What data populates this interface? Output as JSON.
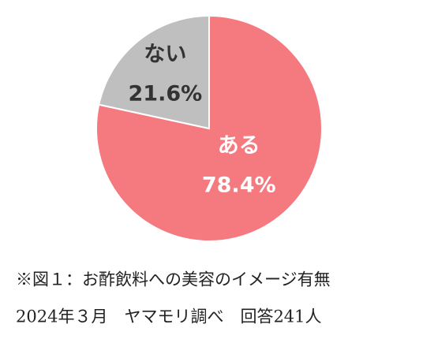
{
  "chart_data": {
    "type": "pie",
    "categories": [
      "ある",
      "ない"
    ],
    "values": [
      78.4,
      21.6
    ],
    "value_labels": [
      "78.4%",
      "21.6%"
    ],
    "colors": [
      "#f47a80",
      "#bfbfbf"
    ],
    "label_colors": [
      "#ffffff",
      "#333333"
    ],
    "notes": [
      "※図１：お酢飲料への美容のイメージ有無",
      "2024年３月　ヤマモリ調べ　回答241人"
    ]
  }
}
